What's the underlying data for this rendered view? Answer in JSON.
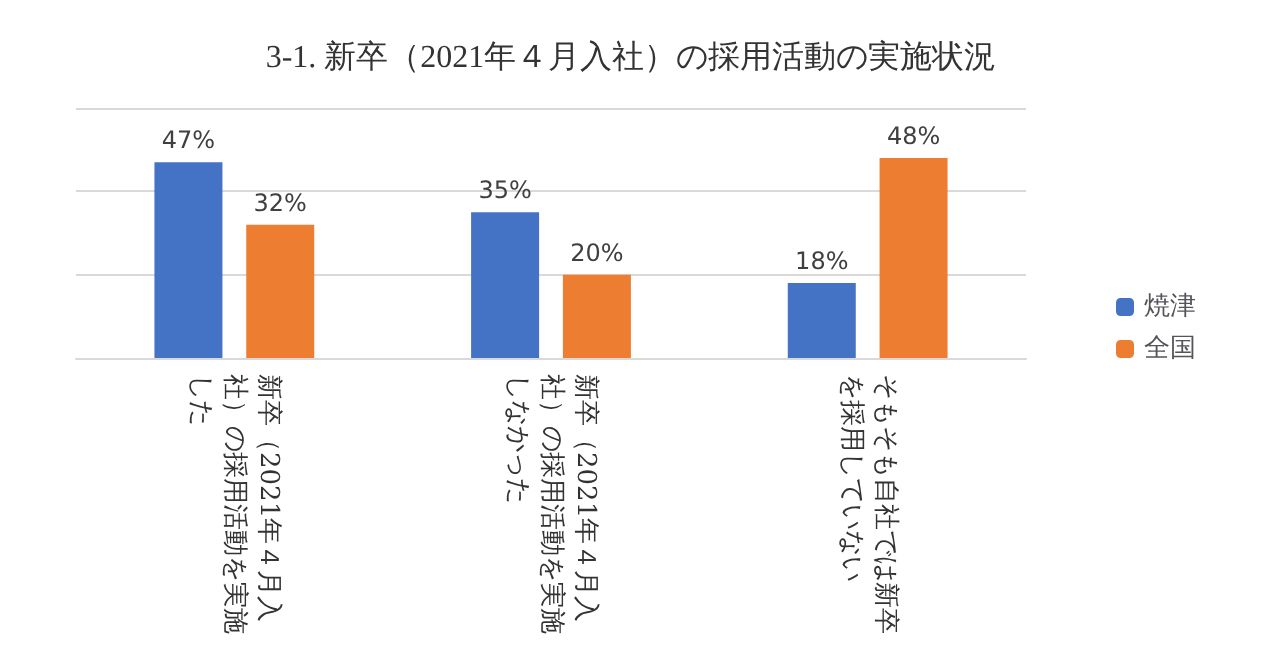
{
  "chart_data": {
    "type": "bar",
    "title": "3-1. 新卒（2021年４月入社）の採用活動の実施状況",
    "categories": [
      "新卒（2021年４月入社）の採用活動を実施した",
      "新卒（2021年４月入社）の採用活動を実施しなかった",
      "そもそも自社では新卒を採用していない"
    ],
    "series": [
      {
        "name": "焼津",
        "color": "#4472c4",
        "values": [
          47,
          35,
          18
        ],
        "value_labels": [
          "47%",
          "35%",
          "18%"
        ]
      },
      {
        "name": "全国",
        "color": "#ed7d31",
        "values": [
          32,
          20,
          48
        ],
        "value_labels": [
          "32%",
          "20%",
          "48%"
        ]
      }
    ],
    "ylim": [
      0,
      60
    ],
    "yticks": [
      {
        "value": 0,
        "label": null
      },
      {
        "value": 20,
        "label": null
      },
      {
        "value": 40,
        "label": null
      },
      {
        "value": 60,
        "label": null
      }
    ],
    "tick_labels": "x",
    "grid": "y",
    "legend": "right"
  }
}
